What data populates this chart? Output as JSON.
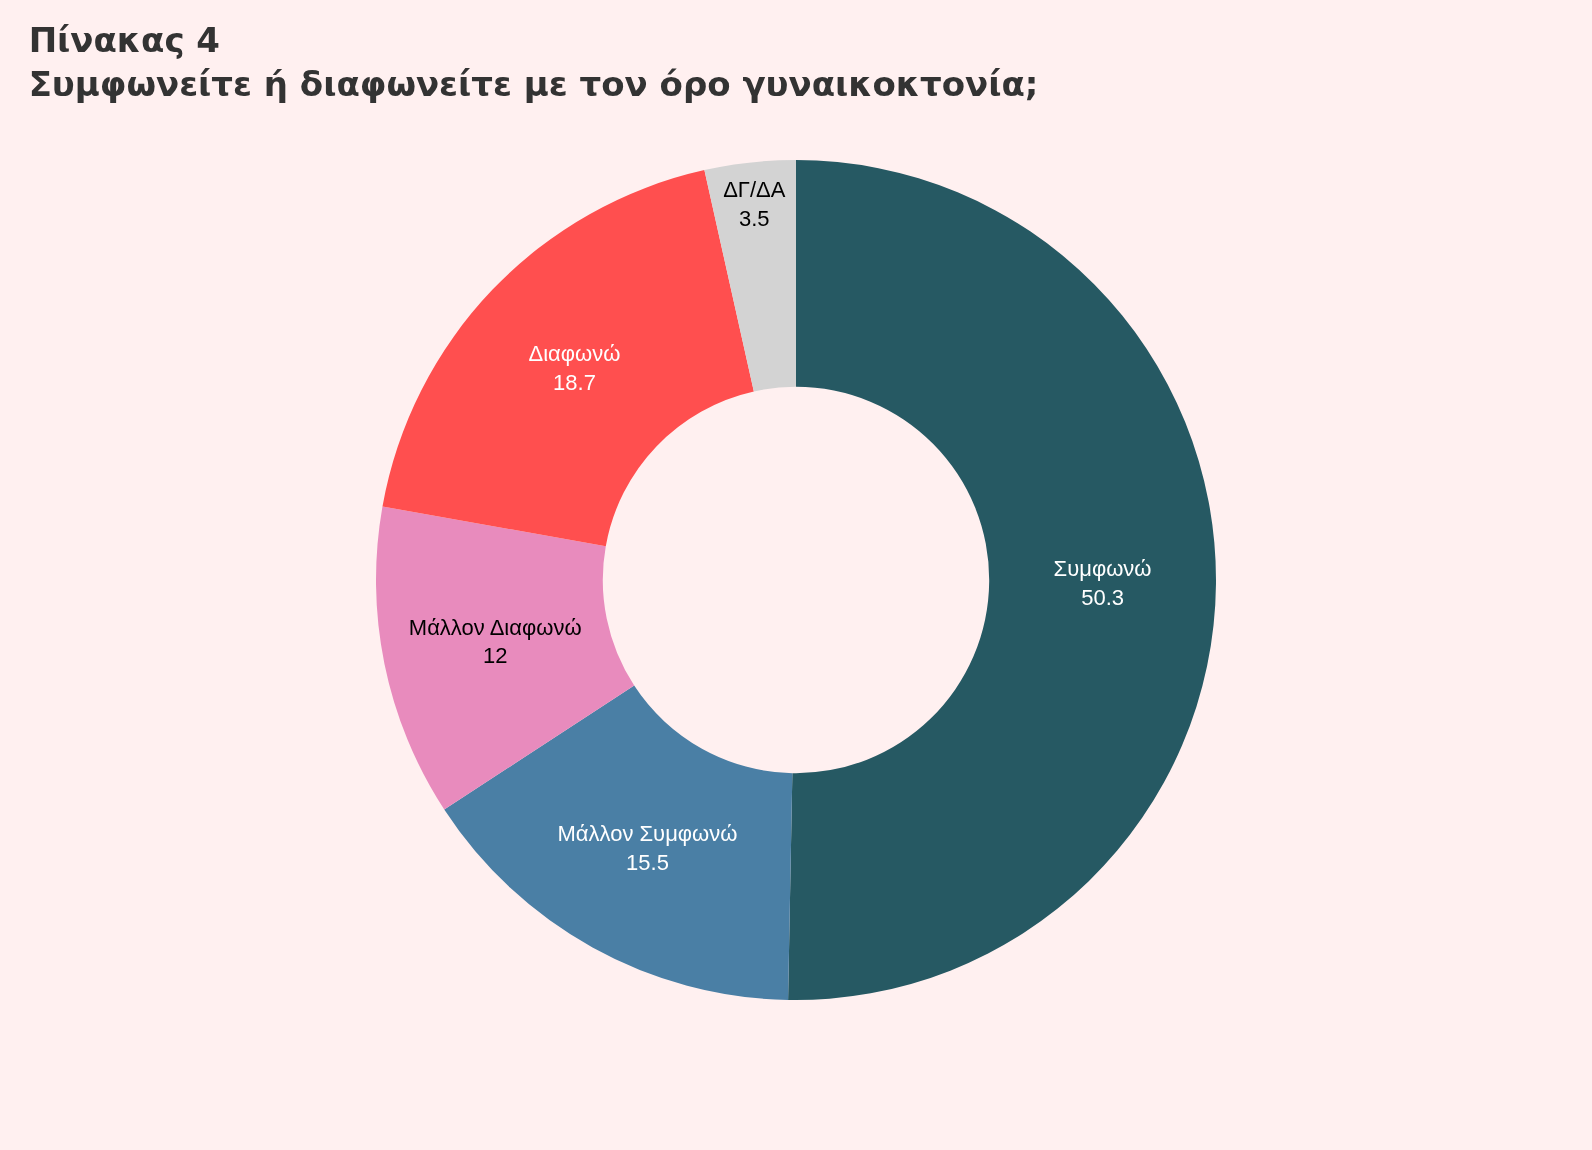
{
  "chart_data": {
    "type": "donut",
    "title": "Πίνακας 4",
    "subtitle": "Συμφωνείτε ή διαφωνείτε με τον όρο γυναικοκτονία;",
    "categories": [
      "Συμφωνώ",
      "Μάλλον Συμφωνώ",
      "Μάλλον Διαφωνώ",
      "Διαφωνώ",
      "ΔΓ/ΔΑ"
    ],
    "values": [
      50.3,
      15.5,
      12,
      18.7,
      3.5
    ],
    "colors": [
      "#265963",
      "#4a7fa5",
      "#e88bbd",
      "#ff4f4f",
      "#d3d3d3"
    ],
    "data_labels": true,
    "legend": false
  }
}
